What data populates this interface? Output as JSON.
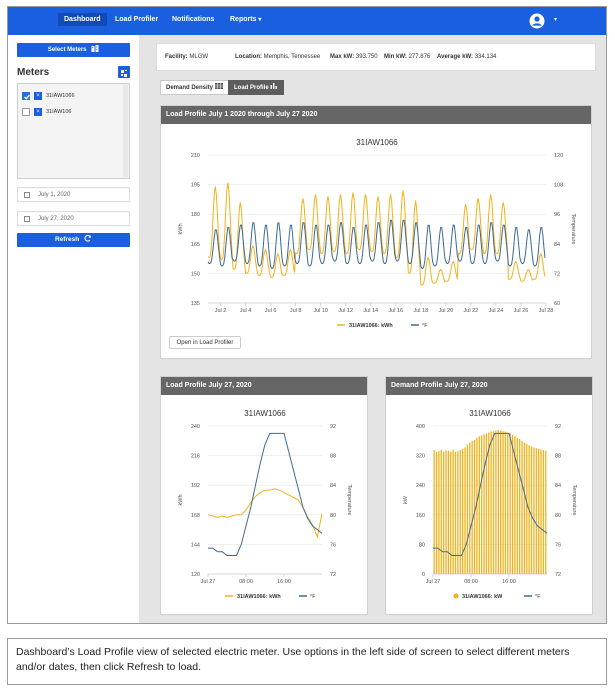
{
  "nav": {
    "items": [
      {
        "label": "Dashboard",
        "active": true
      },
      {
        "label": "Load Profiler",
        "active": false
      },
      {
        "label": "Notifications",
        "active": false
      },
      {
        "label": "Reports",
        "active": false
      }
    ],
    "reports_caret": "▾",
    "user_caret": "▾"
  },
  "sidebar": {
    "select_meters_label": "Select Meters",
    "meters_heading": "Meters",
    "meters": [
      {
        "name": "31IAW1066",
        "checked": true
      },
      {
        "name": "31IAW106",
        "checked": false
      }
    ],
    "start_date": "July 1, 2020",
    "end_date": "July 27, 2020",
    "refresh_label": "Refresh"
  },
  "info": {
    "facility_label": "Facility:",
    "facility_value": "MLGW",
    "location_label": "Location:",
    "location_value": "Memphis, Tennessee",
    "max_label": "Max kW:",
    "max_value": "393.750",
    "min_label": "Min kW:",
    "min_value": "277.876",
    "avg_label": "Average kW:",
    "avg_value": "334.134"
  },
  "tabs": [
    {
      "label": "Demand Density",
      "active": false
    },
    {
      "label": "Load Profile",
      "active": true
    }
  ],
  "colors": {
    "accent": "#1a5fe0",
    "kwh": "#f2b21a",
    "temp": "#3d6a96",
    "header": "#666666"
  },
  "main_card": {
    "header": "Load Profile July 1 2020 through July 27 2020",
    "open_button": "Open in Load Profiler"
  },
  "card2": {
    "header": "Load Profile July 27, 2020"
  },
  "card3": {
    "header": "Demand Profile July 27, 2020"
  },
  "caption": "Dashboard’s Load Profile view of selected electric meter.  Use options  in the left side of screen to select different meters and/or dates, then click Refresh to load.",
  "chart_data": [
    {
      "type": "line",
      "title": "31IAW1066",
      "ylabel": "kWh",
      "y2label": "Temperature",
      "ylim": [
        135,
        210
      ],
      "yticks": [
        135,
        150,
        165,
        180,
        195,
        210
      ],
      "y2lim": [
        60,
        120
      ],
      "y2ticks": [
        60,
        72,
        84,
        96,
        108,
        120
      ],
      "xlim": [
        1,
        28
      ],
      "xticks": [
        "Jul 2",
        "Jul 4",
        "Jul 6",
        "Jul 8",
        "Jul 10",
        "Jul 12",
        "Jul 14",
        "Jul 16",
        "Jul 18",
        "Jul 20",
        "Jul 22",
        "Jul 24",
        "Jul 26",
        "Jul 28"
      ],
      "xtick_values": [
        2,
        4,
        6,
        8,
        10,
        12,
        14,
        16,
        18,
        20,
        22,
        24,
        26,
        28
      ],
      "legend": "bottom",
      "series": [
        {
          "name": "31IAW1066: kWh",
          "axis": "left",
          "style": "line",
          "daily": [
            {
              "day": 1,
              "high": 194,
              "low": 158
            },
            {
              "day": 2,
              "high": 196,
              "low": 157
            },
            {
              "day": 3,
              "high": 186,
              "low": 152
            },
            {
              "day": 4,
              "high": 164,
              "low": 150
            },
            {
              "day": 5,
              "high": 162,
              "low": 149
            },
            {
              "day": 6,
              "high": 160,
              "low": 148
            },
            {
              "day": 7,
              "high": 162,
              "low": 149
            },
            {
              "day": 8,
              "high": 188,
              "low": 160
            },
            {
              "day": 9,
              "high": 190,
              "low": 162
            },
            {
              "day": 10,
              "high": 189,
              "low": 160
            },
            {
              "day": 11,
              "high": 190,
              "low": 161
            },
            {
              "day": 12,
              "high": 191,
              "low": 160
            },
            {
              "day": 13,
              "high": 190,
              "low": 162
            },
            {
              "day": 14,
              "high": 189,
              "low": 161
            },
            {
              "day": 15,
              "high": 190,
              "low": 160
            },
            {
              "day": 16,
              "high": 192,
              "low": 158
            },
            {
              "day": 17,
              "high": 187,
              "low": 150
            },
            {
              "day": 18,
              "high": 158,
              "low": 144
            },
            {
              "day": 19,
              "high": 152,
              "low": 145
            },
            {
              "day": 20,
              "high": 156,
              "low": 146
            },
            {
              "day": 21,
              "high": 185,
              "low": 160
            },
            {
              "day": 22,
              "high": 188,
              "low": 162
            },
            {
              "day": 23,
              "high": 190,
              "low": 160
            },
            {
              "day": 24,
              "high": 186,
              "low": 160
            },
            {
              "day": 25,
              "high": 156,
              "low": 147
            },
            {
              "day": 26,
              "high": 152,
              "low": 146
            },
            {
              "day": 27,
              "high": 160,
              "low": 147
            }
          ]
        },
        {
          "name": "°F",
          "axis": "right",
          "style": "line",
          "daily": [
            {
              "day": 1,
              "high": 90,
              "low": 76
            },
            {
              "day": 2,
              "high": 91,
              "low": 75
            },
            {
              "day": 3,
              "high": 92,
              "low": 77
            },
            {
              "day": 4,
              "high": 93,
              "low": 76
            },
            {
              "day": 5,
              "high": 92,
              "low": 75
            },
            {
              "day": 6,
              "high": 93,
              "low": 74
            },
            {
              "day": 7,
              "high": 92,
              "low": 75
            },
            {
              "day": 8,
              "high": 93,
              "low": 76
            },
            {
              "day": 9,
              "high": 92,
              "low": 75
            },
            {
              "day": 10,
              "high": 92,
              "low": 76
            },
            {
              "day": 11,
              "high": 93,
              "low": 77
            },
            {
              "day": 12,
              "high": 91,
              "low": 76
            },
            {
              "day": 13,
              "high": 92,
              "low": 76
            },
            {
              "day": 14,
              "high": 93,
              "low": 77
            },
            {
              "day": 15,
              "high": 94,
              "low": 76
            },
            {
              "day": 16,
              "high": 94,
              "low": 77
            },
            {
              "day": 17,
              "high": 93,
              "low": 76
            },
            {
              "day": 18,
              "high": 92,
              "low": 74
            },
            {
              "day": 19,
              "high": 91,
              "low": 75
            },
            {
              "day": 20,
              "high": 92,
              "low": 76
            },
            {
              "day": 21,
              "high": 91,
              "low": 77
            },
            {
              "day": 22,
              "high": 92,
              "low": 76
            },
            {
              "day": 23,
              "high": 93,
              "low": 76
            },
            {
              "day": 24,
              "high": 92,
              "low": 77
            },
            {
              "day": 25,
              "high": 91,
              "low": 75
            },
            {
              "day": 26,
              "high": 90,
              "low": 76
            },
            {
              "day": 27,
              "high": 91,
              "low": 75
            }
          ]
        }
      ]
    },
    {
      "type": "line",
      "title": "31IAW1066",
      "ylabel": "kWh",
      "y2label": "Temperature",
      "ylim": [
        120,
        240
      ],
      "yticks": [
        120,
        144,
        168,
        192,
        216,
        240
      ],
      "y2lim": [
        72,
        92
      ],
      "y2ticks": [
        72,
        76,
        80,
        84,
        88,
        92
      ],
      "xlim": [
        0,
        24
      ],
      "xticks": [
        "Jul 27",
        "08:00",
        "16:00"
      ],
      "xtick_values": [
        0,
        8,
        16
      ],
      "legend": "bottom",
      "series": [
        {
          "name": "31IAW1066: kWh",
          "axis": "left",
          "style": "line",
          "x": [
            0,
            1,
            2,
            3,
            4,
            5,
            6,
            7,
            8,
            9,
            10,
            11,
            12,
            13,
            14,
            15,
            16,
            17,
            18,
            19,
            20,
            21,
            22,
            23,
            24
          ],
          "y": [
            168,
            167,
            166,
            167,
            166,
            167,
            168,
            168,
            172,
            178,
            183,
            186,
            188,
            188,
            189,
            188,
            186,
            184,
            182,
            180,
            174,
            166,
            160,
            150,
            169
          ]
        },
        {
          "name": "°F",
          "axis": "right",
          "style": "line",
          "x": [
            0,
            1,
            2,
            3,
            4,
            5,
            6,
            7,
            8,
            9,
            10,
            11,
            12,
            13,
            14,
            15,
            16,
            17,
            18,
            19,
            20,
            21,
            22,
            23,
            24
          ],
          "y": [
            75.5,
            75.5,
            75,
            75,
            74.5,
            74.5,
            74.5,
            76,
            78.5,
            81,
            84,
            87,
            89.5,
            91,
            91,
            91,
            91,
            88.5,
            86,
            83.5,
            81,
            79.5,
            78.5,
            78,
            77.5
          ]
        }
      ]
    },
    {
      "type": "bar",
      "title": "31IAW1066",
      "ylabel": "kW",
      "y2label": "Temperature",
      "ylim": [
        0,
        400
      ],
      "yticks": [
        0,
        80,
        160,
        240,
        320,
        400
      ],
      "y2lim": [
        72,
        92
      ],
      "y2ticks": [
        72,
        76,
        80,
        84,
        88,
        92
      ],
      "xlim": [
        0,
        24
      ],
      "xticks": [
        "Jul 27",
        "08:00",
        "16:00"
      ],
      "xtick_values": [
        0,
        8,
        16
      ],
      "legend": "bottom",
      "series": [
        {
          "name": "31IAW1066: kW",
          "axis": "left",
          "style": "bar",
          "x": [
            0,
            0.5,
            1,
            1.5,
            2,
            2.5,
            3,
            3.5,
            4,
            4.5,
            5,
            5.5,
            6,
            6.5,
            7,
            7.5,
            8,
            8.5,
            9,
            9.5,
            10,
            10.5,
            11,
            11.5,
            12,
            12.5,
            13,
            13.5,
            14,
            14.5,
            15,
            15.5,
            16,
            16.5,
            17,
            17.5,
            18,
            18.5,
            19,
            19.5,
            20,
            20.5,
            21,
            21.5,
            22,
            22.5,
            23,
            23.5
          ],
          "y": [
            335,
            330,
            332,
            336,
            330,
            334,
            333,
            331,
            336,
            330,
            332,
            335,
            338,
            342,
            350,
            355,
            360,
            362,
            368,
            372,
            375,
            378,
            380,
            382,
            385,
            386,
            388,
            389,
            388,
            386,
            385,
            382,
            380,
            376,
            372,
            368,
            365,
            360,
            355,
            352,
            348,
            345,
            342,
            340,
            338,
            336,
            335,
            334
          ]
        },
        {
          "name": "°F",
          "axis": "right",
          "style": "line",
          "x": [
            0,
            1,
            2,
            3,
            4,
            5,
            6,
            7,
            8,
            9,
            10,
            11,
            12,
            13,
            14,
            15,
            16,
            17,
            18,
            19,
            20,
            21,
            22,
            23,
            24
          ],
          "y": [
            75.5,
            75.5,
            75,
            75,
            74.5,
            74.5,
            74.5,
            76,
            78.5,
            81,
            84,
            87,
            89.5,
            91,
            91,
            91,
            91,
            88.5,
            86,
            83.5,
            81,
            79.5,
            78.5,
            78,
            77.5
          ]
        }
      ]
    }
  ]
}
